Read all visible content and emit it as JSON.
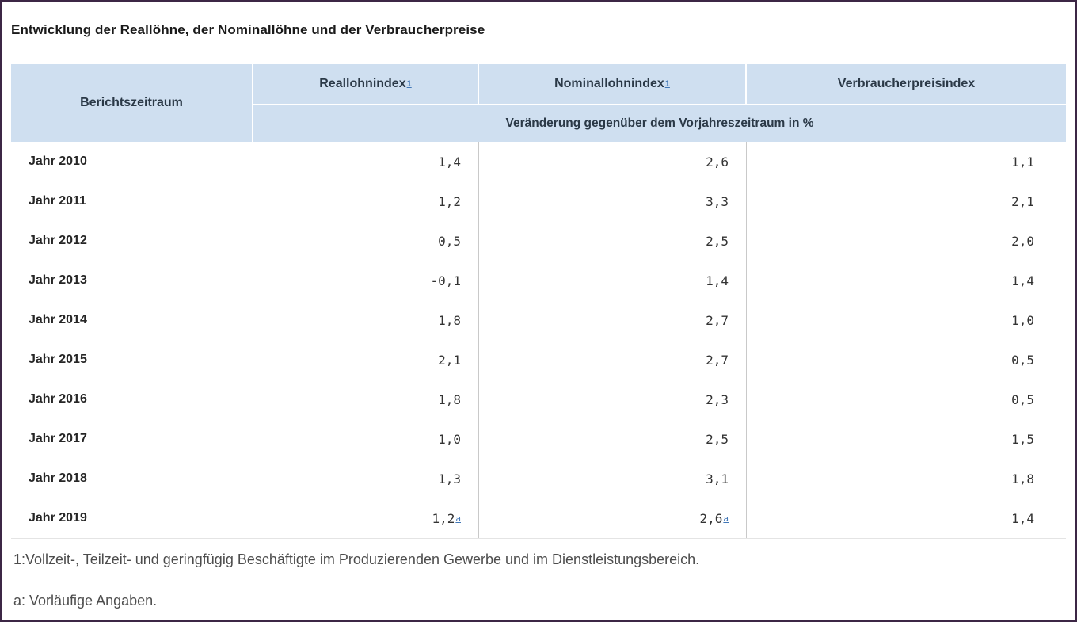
{
  "page": {
    "title": "Entwicklung der Reallöhne, der Nominallöhne und der Verbraucherpreise"
  },
  "theme": {
    "page_border": "#3c2645",
    "header_bg": "#cfdff0",
    "header_text": "#2b3947",
    "link_blue": "#4277b6",
    "divider_gray": "#c9c9c9"
  },
  "table": {
    "header": {
      "col_period": "Berichtszeitraum",
      "col_real": "Reallohnindex",
      "col_real_footnote": "1",
      "col_nominal": "Nominallohnindex",
      "col_nominal_footnote": "1",
      "col_consumer": "Verbraucherpreisindex",
      "subheader": "Veränderung gegenüber dem Vorjahreszeitraum in %"
    },
    "rows": [
      {
        "period": "Jahr 2010",
        "real": "1,4",
        "nominal": "2,6",
        "consumer": "1,1"
      },
      {
        "period": "Jahr 2011",
        "real": "1,2",
        "nominal": "3,3",
        "consumer": "2,1"
      },
      {
        "period": "Jahr 2012",
        "real": "0,5",
        "nominal": "2,5",
        "consumer": "2,0"
      },
      {
        "period": "Jahr 2013",
        "real": "-0,1",
        "nominal": "1,4",
        "consumer": "1,4"
      },
      {
        "period": "Jahr 2014",
        "real": "1,8",
        "nominal": "2,7",
        "consumer": "1,0"
      },
      {
        "period": "Jahr 2015",
        "real": "2,1",
        "nominal": "2,7",
        "consumer": "0,5"
      },
      {
        "period": "Jahr 2016",
        "real": "1,8",
        "nominal": "2,3",
        "consumer": "0,5"
      },
      {
        "period": "Jahr 2017",
        "real": "1,0",
        "nominal": "2,5",
        "consumer": "1,5"
      },
      {
        "period": "Jahr 2018",
        "real": "1,3",
        "nominal": "3,1",
        "consumer": "1,8"
      },
      {
        "period": "Jahr 2019",
        "real": "1,2",
        "real_flag": "a",
        "nominal": "2,6",
        "nominal_flag": "a",
        "consumer": "1,4"
      }
    ]
  },
  "footnotes": [
    "1:Vollzeit-, Teilzeit- und geringfügig Beschäftigte im Produzierenden Gewerbe und im Dienstleistungsbereich.",
    "a: Vorläufige Angaben."
  ],
  "chart_data": {
    "type": "table",
    "title": "Entwicklung der Reallöhne, der Nominallöhne und der Verbraucherpreise",
    "unit_row": "Veränderung gegenüber dem Vorjahreszeitraum in %",
    "categories": [
      "Jahr 2010",
      "Jahr 2011",
      "Jahr 2012",
      "Jahr 2013",
      "Jahr 2014",
      "Jahr 2015",
      "Jahr 2016",
      "Jahr 2017",
      "Jahr 2018",
      "Jahr 2019"
    ],
    "series": [
      {
        "name": "Reallohnindex",
        "values": [
          1.4,
          1.2,
          0.5,
          -0.1,
          1.8,
          2.1,
          1.8,
          1.0,
          1.3,
          1.2
        ]
      },
      {
        "name": "Nominallohnindex",
        "values": [
          2.6,
          3.3,
          2.5,
          1.4,
          2.7,
          2.7,
          2.3,
          2.5,
          3.1,
          2.6
        ]
      },
      {
        "name": "Verbraucherpreisindex",
        "values": [
          1.1,
          2.1,
          2.0,
          1.4,
          1.0,
          0.5,
          0.5,
          1.5,
          1.8,
          1.4
        ]
      }
    ],
    "footnotes": {
      "1": "Vollzeit-, Teilzeit- und geringfügig Beschäftigte im Produzierenden Gewerbe und im Dienstleistungsbereich.",
      "a": "Vorläufige Angaben."
    }
  }
}
